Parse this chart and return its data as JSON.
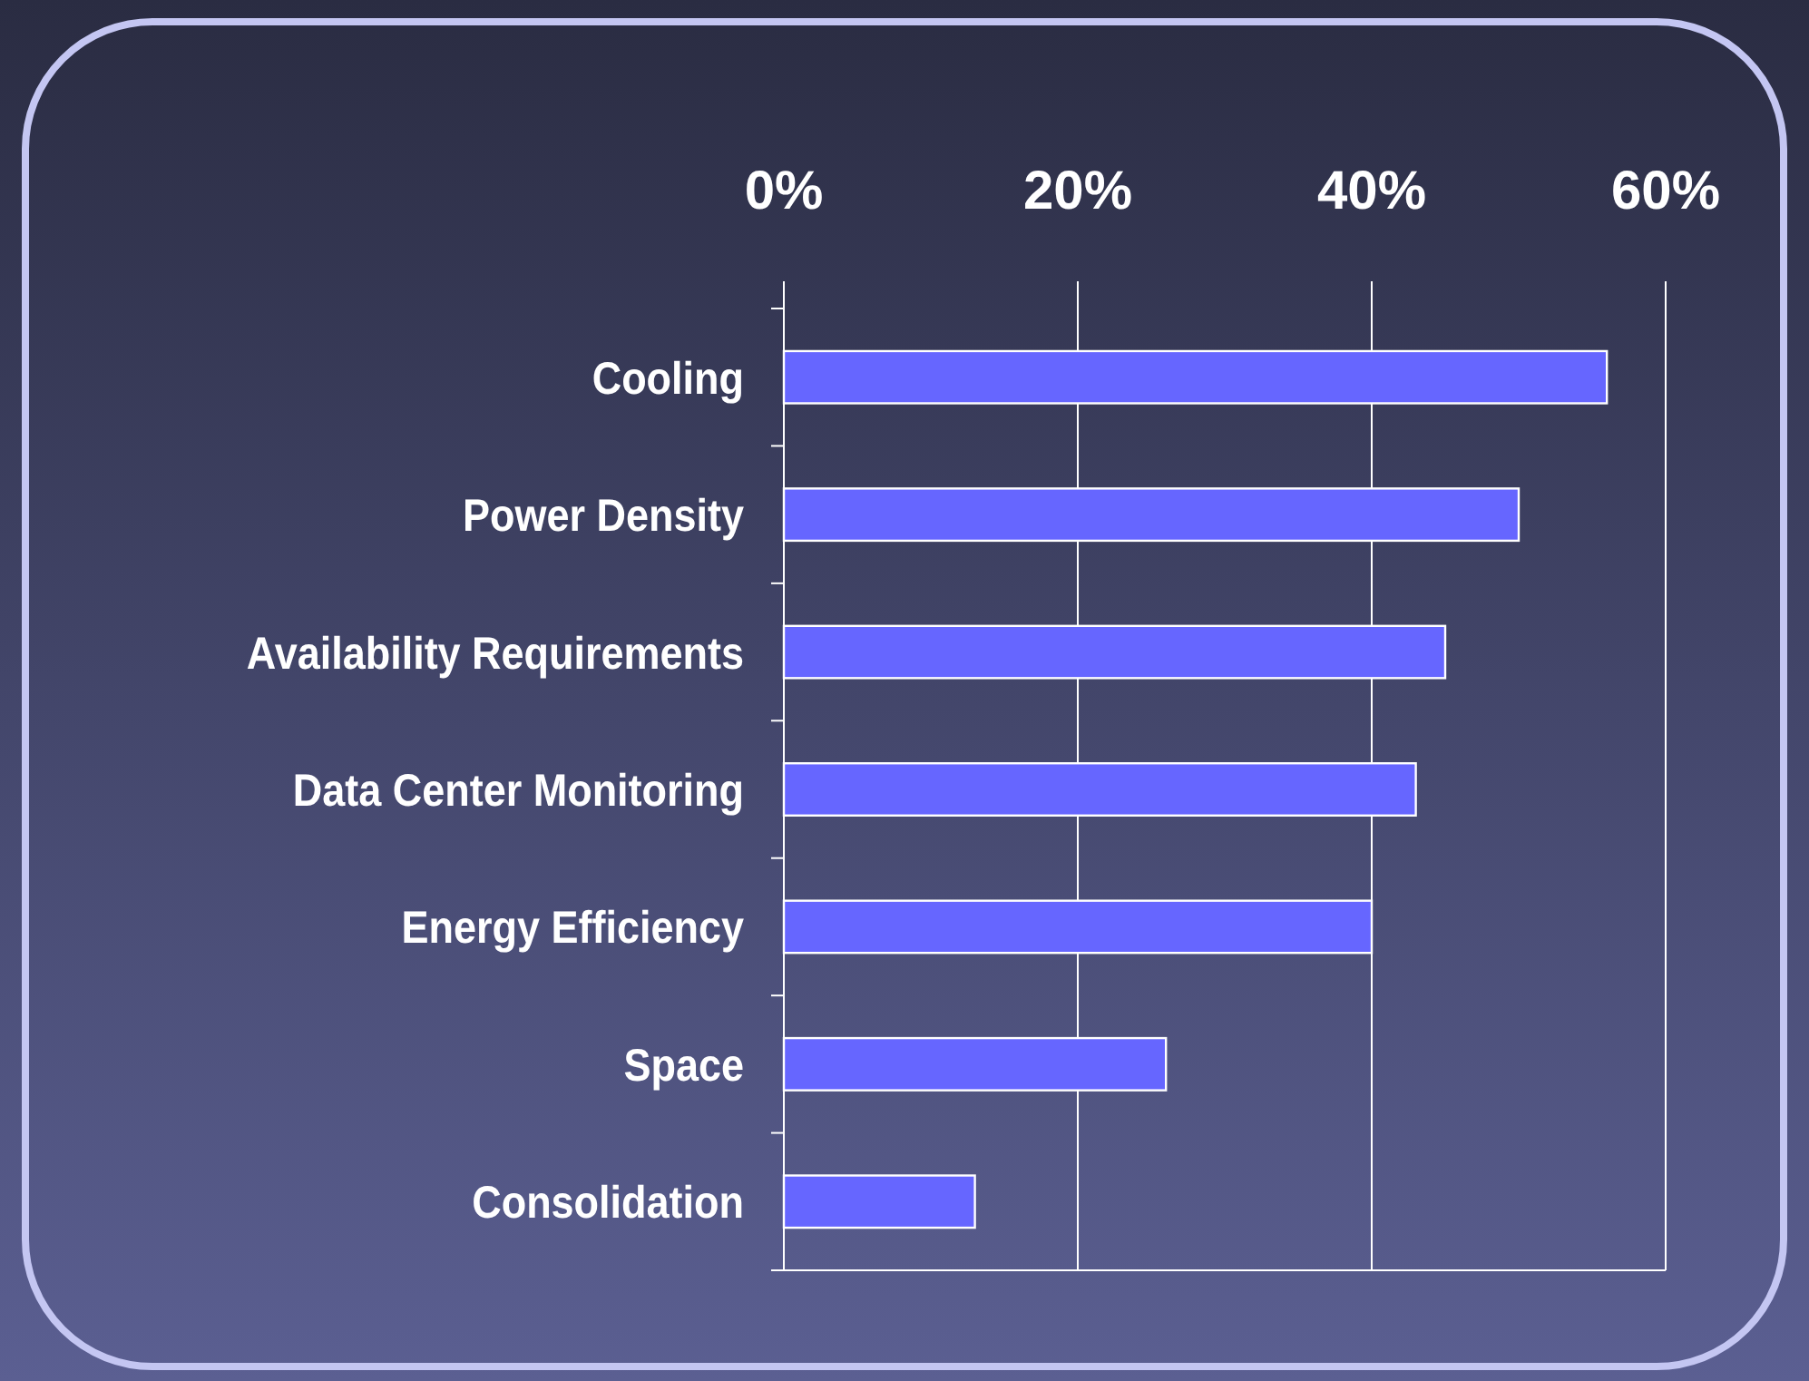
{
  "chart_data": {
    "type": "bar",
    "orientation": "horizontal",
    "categories": [
      "Cooling",
      "Power Density",
      "Availability Requirements",
      "Data Center Monitoring",
      "Energy Efficiency",
      "Space",
      "Consolidation"
    ],
    "values": [
      56,
      50,
      45,
      43,
      40,
      26,
      13
    ],
    "color": "#6666ff",
    "xlim": [
      0,
      60
    ],
    "xticks": [
      {
        "value": 0,
        "label": "0%"
      },
      {
        "value": 20,
        "label": "20%"
      },
      {
        "value": 40,
        "label": "40%"
      },
      {
        "value": 60,
        "label": "60%"
      }
    ],
    "grid": "x"
  }
}
